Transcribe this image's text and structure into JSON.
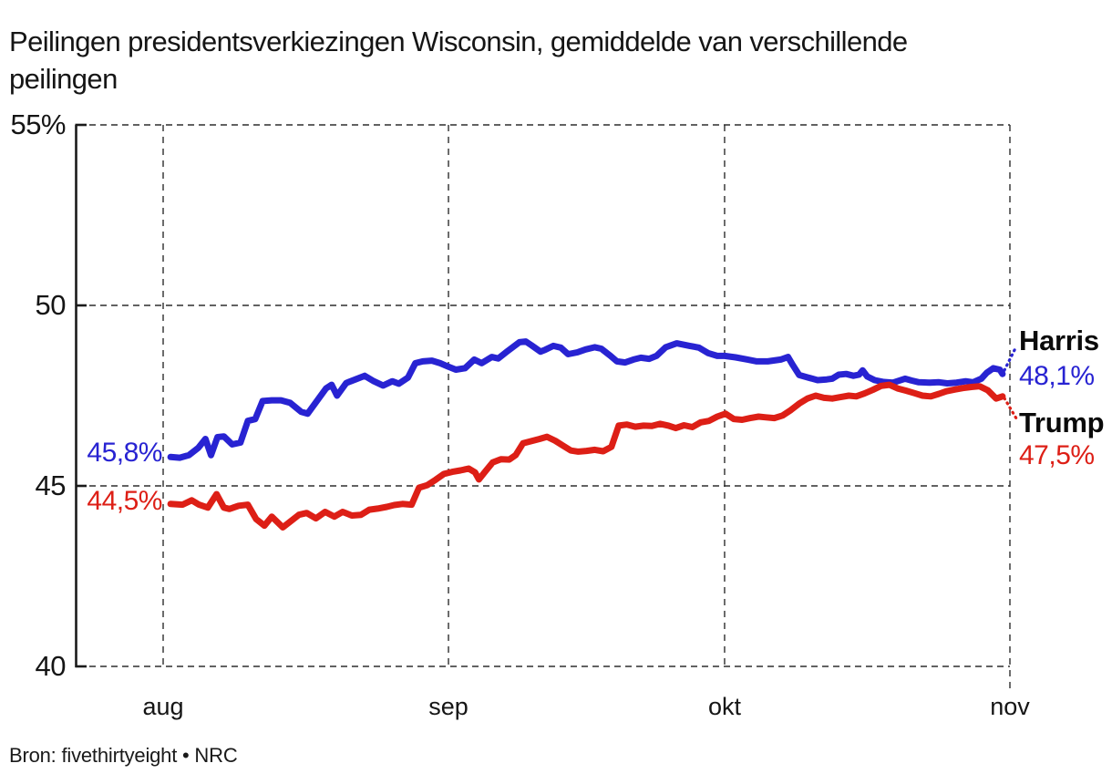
{
  "title": {
    "line1": "Peilingen presidentsverkiezingen Wisconsin, gemiddelde van verschillende",
    "line2": "peilingen"
  },
  "source": {
    "text": "Bron: fivethirtyeight • NRC"
  },
  "colors": {
    "harris_blue": "#2823d2",
    "trump_red": "#dd1f16",
    "grid": "#2e2e2e",
    "axis": "#1a1a1a",
    "text": "#151515"
  },
  "chart_data": {
    "type": "line",
    "title": "Peilingen presidentsverkiezingen Wisconsin, gemiddelde van verschillende peilingen",
    "xlabel": "",
    "ylabel": "",
    "x_axis": {
      "unit": "days_from_aug_1",
      "tick_days": [
        0,
        31,
        61,
        92
      ],
      "tick_labels": [
        "aug",
        "sep",
        "okt",
        "nov"
      ],
      "range_days": [
        0,
        92
      ]
    },
    "y_axis": {
      "ticks": [
        55,
        50,
        45,
        40
      ],
      "tick_labels": [
        "55%",
        "50",
        "45",
        "40"
      ],
      "range": [
        40,
        55
      ],
      "grid": "dashed"
    },
    "legend_position": "right-of-line-ends",
    "series": [
      {
        "name": "Harris",
        "color": "#2823d2",
        "start_label": "45,8%",
        "end_label": "48,1%",
        "points": [
          [
            0.8,
            45.8
          ],
          [
            1.8,
            45.78
          ],
          [
            2.8,
            45.85
          ],
          [
            3.8,
            46.05
          ],
          [
            4.6,
            46.3
          ],
          [
            5.2,
            45.85
          ],
          [
            5.9,
            46.35
          ],
          [
            6.6,
            46.37
          ],
          [
            7.5,
            46.15
          ],
          [
            8.4,
            46.2
          ],
          [
            9.2,
            46.8
          ],
          [
            10,
            46.85
          ],
          [
            10.8,
            47.35
          ],
          [
            11.8,
            47.37
          ],
          [
            12.8,
            47.37
          ],
          [
            13.8,
            47.3
          ],
          [
            15,
            47.05
          ],
          [
            15.7,
            47
          ],
          [
            16.7,
            47.35
          ],
          [
            17.7,
            47.7
          ],
          [
            18.3,
            47.8
          ],
          [
            18.9,
            47.5
          ],
          [
            19.9,
            47.85
          ],
          [
            20.9,
            47.95
          ],
          [
            21.9,
            48.05
          ],
          [
            22.9,
            47.9
          ],
          [
            23.9,
            47.78
          ],
          [
            24.9,
            47.9
          ],
          [
            25.6,
            47.83
          ],
          [
            26.6,
            48
          ],
          [
            27.4,
            48.4
          ],
          [
            28.2,
            48.45
          ],
          [
            29.2,
            48.47
          ],
          [
            30.1,
            48.4
          ],
          [
            31,
            48.3
          ],
          [
            31.8,
            48.22
          ],
          [
            32.8,
            48.26
          ],
          [
            33.8,
            48.5
          ],
          [
            34.6,
            48.4
          ],
          [
            35.7,
            48.57
          ],
          [
            36.4,
            48.53
          ],
          [
            37.4,
            48.73
          ],
          [
            38.7,
            48.98
          ],
          [
            39.4,
            49
          ],
          [
            40,
            48.9
          ],
          [
            41,
            48.72
          ],
          [
            41.5,
            48.77
          ],
          [
            42.4,
            48.88
          ],
          [
            43.2,
            48.83
          ],
          [
            44,
            48.65
          ],
          [
            45,
            48.7
          ],
          [
            45.9,
            48.78
          ],
          [
            46.9,
            48.84
          ],
          [
            47.6,
            48.8
          ],
          [
            48.6,
            48.6
          ],
          [
            49.3,
            48.45
          ],
          [
            50.2,
            48.42
          ],
          [
            51.1,
            48.5
          ],
          [
            51.9,
            48.55
          ],
          [
            52.8,
            48.52
          ],
          [
            53.6,
            48.6
          ],
          [
            54.6,
            48.84
          ],
          [
            55.8,
            48.95
          ],
          [
            57.2,
            48.88
          ],
          [
            58.2,
            48.83
          ],
          [
            59.2,
            48.68
          ],
          [
            60.2,
            48.6
          ],
          [
            61,
            48.6
          ],
          [
            62.2,
            48.56
          ],
          [
            63.5,
            48.5
          ],
          [
            64.5,
            48.45
          ],
          [
            65.7,
            48.45
          ],
          [
            67.1,
            48.5
          ],
          [
            67.9,
            48.57
          ],
          [
            68.4,
            48.35
          ],
          [
            69.1,
            48.07
          ],
          [
            70.1,
            48
          ],
          [
            71.1,
            47.93
          ],
          [
            72.1,
            47.95
          ],
          [
            72.7,
            47.97
          ],
          [
            73.4,
            48.08
          ],
          [
            74.2,
            48.1
          ],
          [
            75,
            48.05
          ],
          [
            75.6,
            48.08
          ],
          [
            76,
            48.2
          ],
          [
            76.5,
            48.03
          ],
          [
            77.3,
            47.93
          ],
          [
            78.3,
            47.88
          ],
          [
            79.3,
            47.86
          ],
          [
            80,
            47.92
          ],
          [
            80.6,
            47.97
          ],
          [
            81.3,
            47.92
          ],
          [
            82.1,
            47.87
          ],
          [
            83.3,
            47.86
          ],
          [
            84.3,
            47.87
          ],
          [
            85.2,
            47.84
          ],
          [
            86.2,
            47.86
          ],
          [
            87.2,
            47.9
          ],
          [
            88,
            47.87
          ],
          [
            88.9,
            47.97
          ],
          [
            89.5,
            48.14
          ],
          [
            90.2,
            48.26
          ],
          [
            90.9,
            48.22
          ],
          [
            91.2,
            48.1
          ]
        ]
      },
      {
        "name": "Trump",
        "color": "#dd1f16",
        "start_label": "44,5%",
        "end_label": "47,5%",
        "points": [
          [
            0.8,
            44.5
          ],
          [
            2.1,
            44.48
          ],
          [
            3.1,
            44.6
          ],
          [
            3.9,
            44.48
          ],
          [
            4.85,
            44.4
          ],
          [
            5.8,
            44.77
          ],
          [
            6.6,
            44.4
          ],
          [
            7.2,
            44.36
          ],
          [
            8.2,
            44.45
          ],
          [
            9.2,
            44.48
          ],
          [
            10.1,
            44.08
          ],
          [
            11,
            43.9
          ],
          [
            11.8,
            44.15
          ],
          [
            13,
            43.85
          ],
          [
            14,
            44.05
          ],
          [
            14.75,
            44.2
          ],
          [
            15.6,
            44.25
          ],
          [
            16.6,
            44.1
          ],
          [
            17.6,
            44.28
          ],
          [
            18.6,
            44.15
          ],
          [
            19.5,
            44.28
          ],
          [
            20.5,
            44.18
          ],
          [
            21.5,
            44.2
          ],
          [
            22.4,
            44.34
          ],
          [
            23.3,
            44.37
          ],
          [
            24.3,
            44.42
          ],
          [
            25.1,
            44.47
          ],
          [
            26,
            44.5
          ],
          [
            27,
            44.48
          ],
          [
            27.8,
            44.95
          ],
          [
            28.7,
            45.02
          ],
          [
            29.6,
            45.17
          ],
          [
            30.5,
            45.33
          ],
          [
            31.4,
            45.39
          ],
          [
            32.3,
            45.43
          ],
          [
            33.2,
            45.48
          ],
          [
            33.9,
            45.37
          ],
          [
            34.3,
            45.18
          ],
          [
            35,
            45.4
          ],
          [
            35.8,
            45.65
          ],
          [
            36.7,
            45.74
          ],
          [
            37.6,
            45.73
          ],
          [
            38.3,
            45.85
          ],
          [
            39.1,
            46.18
          ],
          [
            40,
            46.24
          ],
          [
            40.9,
            46.3
          ],
          [
            41.7,
            46.36
          ],
          [
            42.6,
            46.25
          ],
          [
            43.4,
            46.12
          ],
          [
            44.3,
            45.98
          ],
          [
            45.1,
            45.95
          ],
          [
            46,
            45.97
          ],
          [
            46.9,
            46
          ],
          [
            47.8,
            45.96
          ],
          [
            48.7,
            46.08
          ],
          [
            49.5,
            46.67
          ],
          [
            50.4,
            46.7
          ],
          [
            51.3,
            46.64
          ],
          [
            52.2,
            46.67
          ],
          [
            53.1,
            46.66
          ],
          [
            54,
            46.72
          ],
          [
            54.9,
            46.67
          ],
          [
            55.7,
            46.6
          ],
          [
            56.6,
            46.68
          ],
          [
            57.5,
            46.63
          ],
          [
            58.4,
            46.76
          ],
          [
            59.3,
            46.8
          ],
          [
            60.2,
            46.92
          ],
          [
            61.1,
            47
          ],
          [
            62,
            46.85
          ],
          [
            62.9,
            46.83
          ],
          [
            63.8,
            46.88
          ],
          [
            64.7,
            46.92
          ],
          [
            65.5,
            46.9
          ],
          [
            66.4,
            46.88
          ],
          [
            67.3,
            46.95
          ],
          [
            68.2,
            47.1
          ],
          [
            69.1,
            47.28
          ],
          [
            70,
            47.42
          ],
          [
            70.9,
            47.5
          ],
          [
            71.8,
            47.44
          ],
          [
            72.7,
            47.42
          ],
          [
            73.6,
            47.46
          ],
          [
            74.5,
            47.5
          ],
          [
            75.3,
            47.48
          ],
          [
            76.2,
            47.56
          ],
          [
            77.1,
            47.66
          ],
          [
            78,
            47.77
          ],
          [
            78.9,
            47.8
          ],
          [
            79.8,
            47.7
          ],
          [
            80.7,
            47.64
          ],
          [
            81.6,
            47.57
          ],
          [
            82.5,
            47.5
          ],
          [
            83.4,
            47.48
          ],
          [
            84.3,
            47.55
          ],
          [
            85.1,
            47.62
          ],
          [
            86,
            47.67
          ],
          [
            86.9,
            47.71
          ],
          [
            87.8,
            47.74
          ],
          [
            88.7,
            47.76
          ],
          [
            89.6,
            47.65
          ],
          [
            90.5,
            47.42
          ],
          [
            91.2,
            47.48
          ]
        ]
      }
    ]
  }
}
